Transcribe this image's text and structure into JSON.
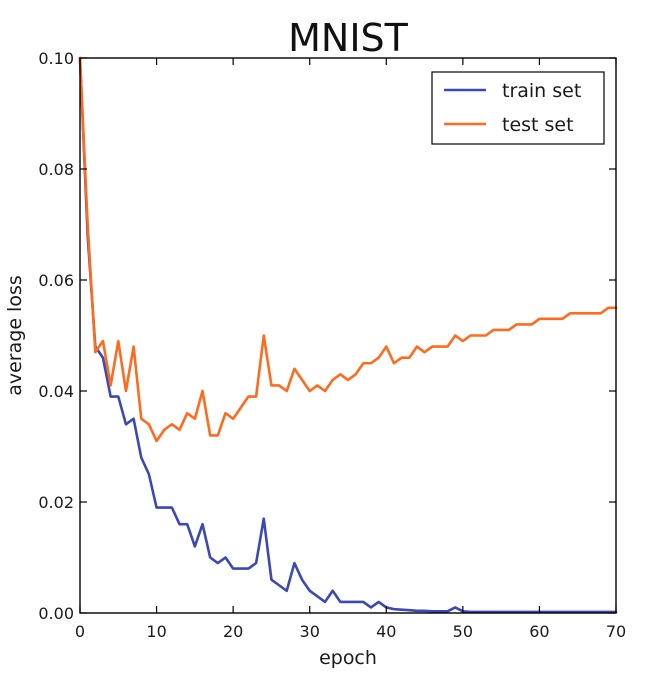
{
  "chart_data": {
    "type": "line",
    "title": "MNIST",
    "xlabel": "epoch",
    "ylabel": "average loss",
    "xlim": [
      0,
      70
    ],
    "ylim": [
      0,
      0.1
    ],
    "x_ticks": [
      "0",
      "10",
      "20",
      "30",
      "40",
      "50",
      "60",
      "70"
    ],
    "y_ticks": [
      "0.00",
      "0.02",
      "0.04",
      "0.06",
      "0.08",
      "0.10"
    ],
    "grid": false,
    "legend_position": "top-right",
    "series": [
      {
        "name": "train set",
        "color": "#3b48b5",
        "x": [
          0,
          1,
          2,
          3,
          4,
          5,
          6,
          7,
          8,
          9,
          10,
          11,
          12,
          13,
          14,
          15,
          16,
          17,
          18,
          19,
          20,
          21,
          22,
          23,
          24,
          25,
          26,
          27,
          28,
          29,
          30,
          31,
          32,
          33,
          34,
          35,
          36,
          37,
          38,
          39,
          40,
          41,
          42,
          43,
          44,
          45,
          46,
          47,
          48,
          49,
          50,
          51,
          52,
          53,
          54,
          55,
          56,
          57,
          58,
          59,
          60,
          61,
          62,
          63,
          64,
          65,
          66,
          67,
          68,
          69,
          70
        ],
        "values": [
          0.1,
          0.068,
          0.048,
          0.046,
          0.039,
          0.039,
          0.034,
          0.035,
          0.028,
          0.025,
          0.019,
          0.019,
          0.019,
          0.016,
          0.016,
          0.012,
          0.016,
          0.01,
          0.009,
          0.01,
          0.008,
          0.008,
          0.008,
          0.009,
          0.017,
          0.006,
          0.005,
          0.004,
          0.009,
          0.006,
          0.004,
          0.003,
          0.002,
          0.004,
          0.002,
          0.002,
          0.002,
          0.002,
          0.001,
          0.002,
          0.001,
          0.0007,
          0.0006,
          0.0005,
          0.0004,
          0.0004,
          0.0003,
          0.0003,
          0.0003,
          0.001,
          0.0003,
          0.0002,
          0.0002,
          0.0002,
          0.0002,
          0.0002,
          0.0002,
          0.0002,
          0.0002,
          0.0002,
          0.0002,
          0.0002,
          0.0002,
          0.0002,
          0.0002,
          0.0002,
          0.0002,
          0.0002,
          0.0002,
          0.0002,
          0.0002
        ]
      },
      {
        "name": "test set",
        "color": "#ff6b1f",
        "x": [
          0,
          1,
          2,
          3,
          4,
          5,
          6,
          7,
          8,
          9,
          10,
          11,
          12,
          13,
          14,
          15,
          16,
          17,
          18,
          19,
          20,
          21,
          22,
          23,
          24,
          25,
          26,
          27,
          28,
          29,
          30,
          31,
          32,
          33,
          34,
          35,
          36,
          37,
          38,
          39,
          40,
          41,
          42,
          43,
          44,
          45,
          46,
          47,
          48,
          49,
          50,
          51,
          52,
          53,
          54,
          55,
          56,
          57,
          58,
          59,
          60,
          61,
          62,
          63,
          64,
          65,
          66,
          67,
          68,
          69,
          70
        ],
        "values": [
          0.1,
          0.07,
          0.047,
          0.049,
          0.041,
          0.049,
          0.04,
          0.048,
          0.035,
          0.034,
          0.031,
          0.033,
          0.034,
          0.033,
          0.036,
          0.035,
          0.04,
          0.032,
          0.032,
          0.036,
          0.035,
          0.037,
          0.039,
          0.039,
          0.05,
          0.041,
          0.041,
          0.04,
          0.044,
          0.042,
          0.04,
          0.041,
          0.04,
          0.042,
          0.043,
          0.042,
          0.043,
          0.045,
          0.045,
          0.046,
          0.048,
          0.045,
          0.046,
          0.046,
          0.048,
          0.047,
          0.048,
          0.048,
          0.048,
          0.05,
          0.049,
          0.05,
          0.05,
          0.05,
          0.051,
          0.051,
          0.051,
          0.052,
          0.052,
          0.052,
          0.053,
          0.053,
          0.053,
          0.053,
          0.054,
          0.054,
          0.054,
          0.054,
          0.054,
          0.055,
          0.055
        ]
      }
    ]
  }
}
